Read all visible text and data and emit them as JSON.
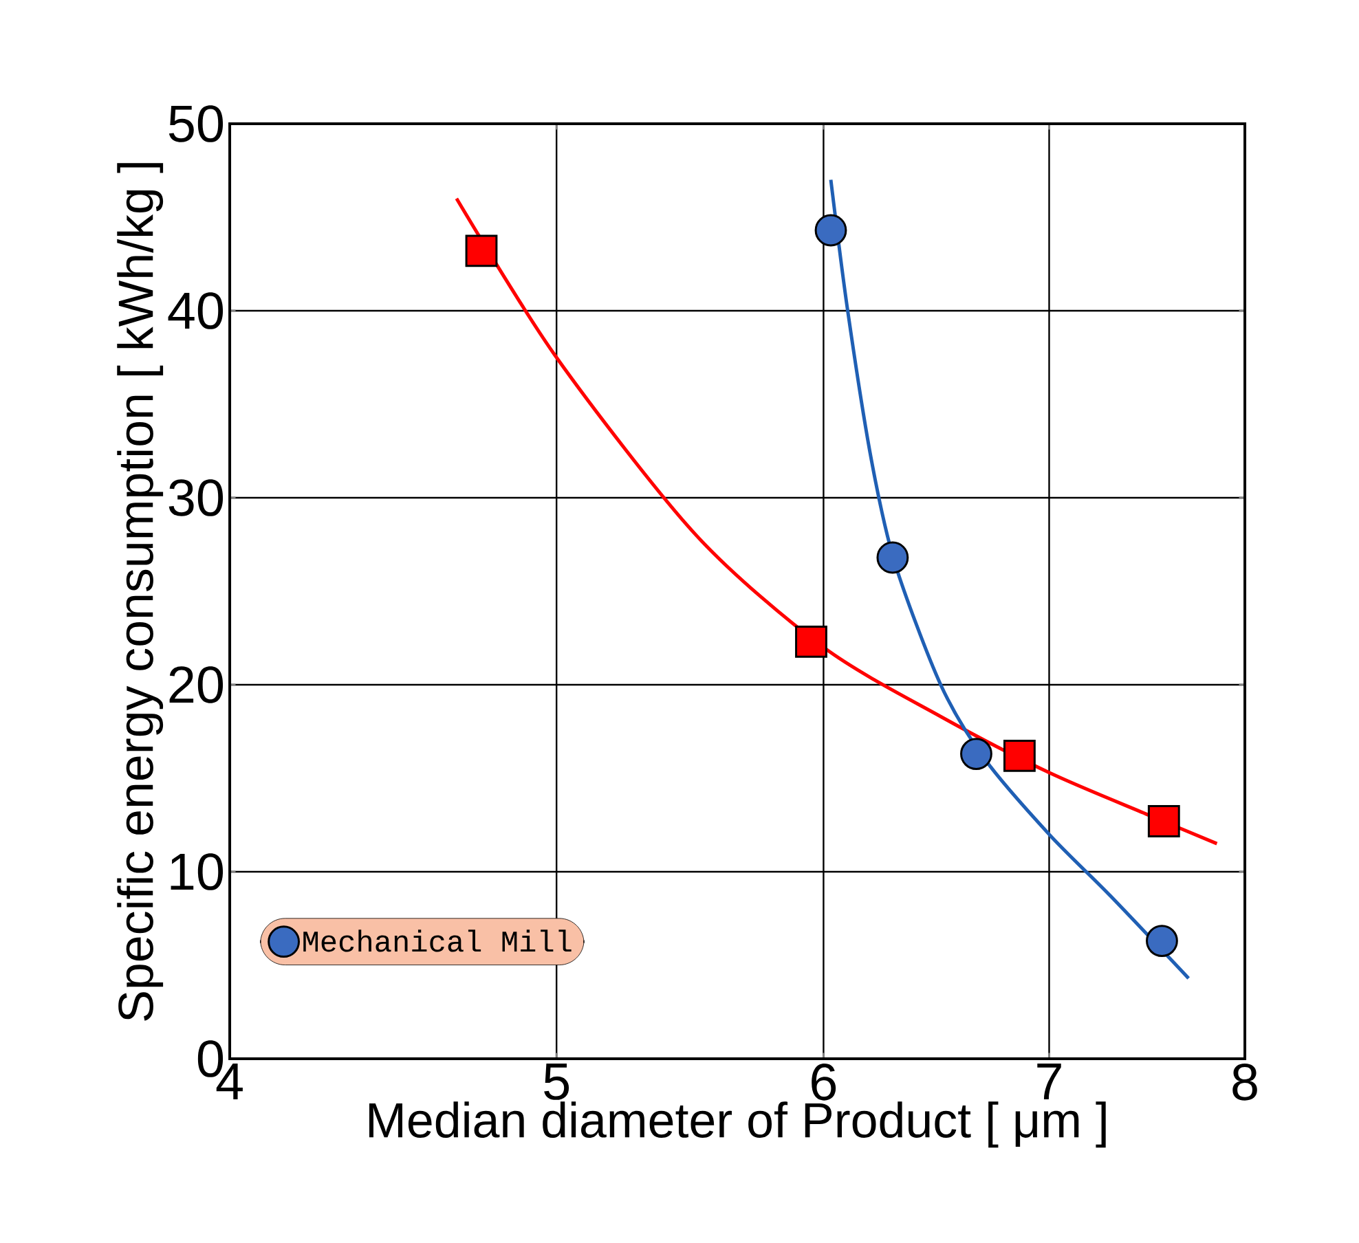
{
  "chart_data": {
    "type": "scatter",
    "xlabel": "Median diameter of Product [ μm ]",
    "ylabel": "Specific energy consumption [ kWh/kg ]",
    "log": "x",
    "xlim": [
      4,
      8
    ],
    "xticks": [
      4,
      5,
      6,
      7,
      8
    ],
    "ylim": [
      0,
      50
    ],
    "yticks": [
      0,
      10,
      20,
      30,
      40,
      50
    ],
    "grid": true,
    "legend": "bottom left",
    "series": [
      {
        "type": "line",
        "color": "#ff0000",
        "marker": "none",
        "x": [
          4.67,
          5,
          5.5,
          6,
          6.5,
          7,
          7.5,
          7.85
        ],
        "values": [
          46,
          37.5,
          28,
          22,
          18.3,
          15.3,
          13,
          11.5
        ]
      },
      {
        "type": "line",
        "color": "#1f5fb4",
        "marker": "none",
        "x": [
          6.03,
          6.1,
          6.2,
          6.3,
          6.5,
          6.7,
          7,
          7.3,
          7.7
        ],
        "values": [
          47,
          40,
          32,
          26.5,
          20,
          16,
          12,
          8.7,
          4.3
        ]
      },
      {
        "name": "Mechanical Mill",
        "color": "#3a6bc0",
        "marker": "circle",
        "x": [
          6.03,
          6.29,
          6.66,
          7.56
        ],
        "values": [
          44.3,
          26.8,
          16.3,
          6.3
        ]
      },
      {
        "color": "#ff0000",
        "marker": "square",
        "x": [
          4.75,
          5.95,
          6.86,
          7.57
        ],
        "values": [
          43.2,
          22.3,
          16.2,
          12.7
        ]
      }
    ]
  }
}
